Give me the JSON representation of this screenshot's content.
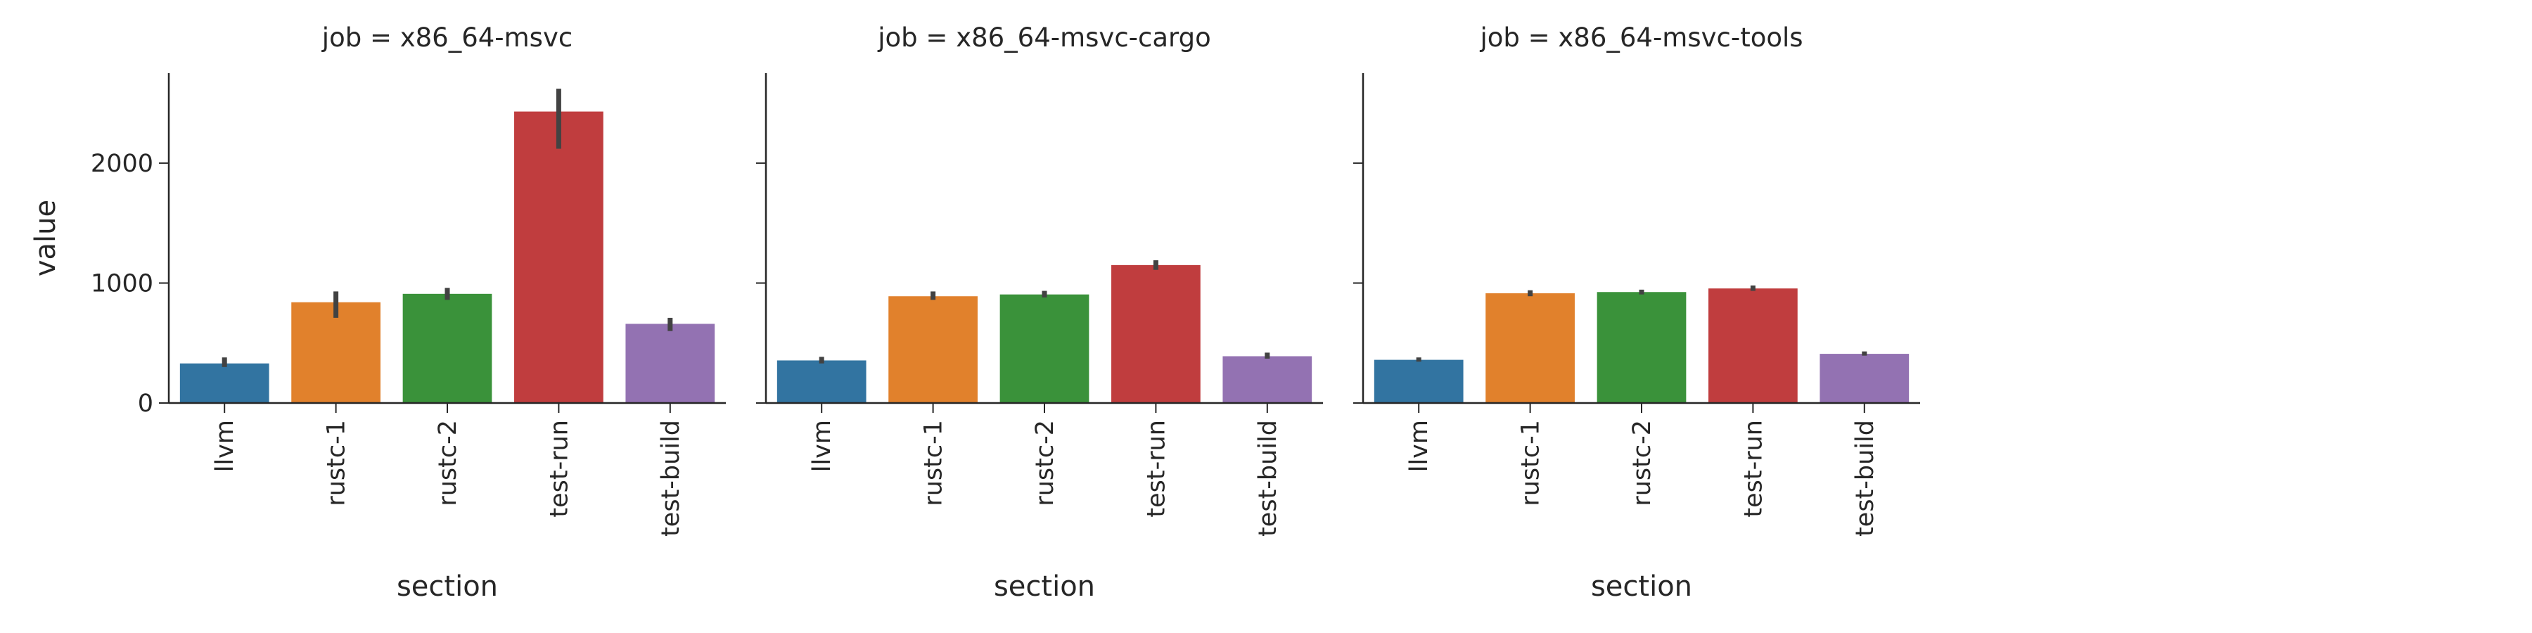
{
  "colors": {
    "llvm": "#3274a1",
    "rustc-1": "#e1812c",
    "rustc-2": "#3a923a",
    "test-run": "#c03d3e",
    "test-build": "#9372b2",
    "errorbar": "#424242",
    "axis": "#262626"
  },
  "chart_data": [
    {
      "type": "bar",
      "title": "job = x86_64-msvc",
      "xlabel": "section",
      "ylabel": "value",
      "categories": [
        "llvm",
        "rustc-1",
        "rustc-2",
        "test-run",
        "test-build"
      ],
      "values": [
        330,
        840,
        910,
        2430,
        660
      ],
      "error_low": [
        300,
        710,
        860,
        2120,
        600
      ],
      "error_high": [
        380,
        930,
        960,
        2620,
        710
      ],
      "ylim": [
        0,
        2750
      ],
      "yticks": [
        0,
        1000,
        2000
      ],
      "ytick_labels": [
        "0",
        "1000",
        "2000"
      ],
      "grid": false
    },
    {
      "type": "bar",
      "title": "job = x86_64-msvc-cargo",
      "xlabel": "section",
      "ylabel": "",
      "categories": [
        "llvm",
        "rustc-1",
        "rustc-2",
        "test-run",
        "test-build"
      ],
      "values": [
        355,
        890,
        905,
        1150,
        390
      ],
      "error_low": [
        330,
        860,
        880,
        1110,
        370
      ],
      "error_high": [
        385,
        930,
        935,
        1190,
        420
      ],
      "ylim": [
        0,
        2750
      ],
      "yticks": [
        0,
        1000,
        2000
      ],
      "ytick_labels": [
        "",
        "",
        ""
      ],
      "grid": false
    },
    {
      "type": "bar",
      "title": "job = x86_64-msvc-tools",
      "xlabel": "section",
      "ylabel": "",
      "categories": [
        "llvm",
        "rustc-1",
        "rustc-2",
        "test-run",
        "test-build"
      ],
      "values": [
        360,
        915,
        925,
        955,
        410
      ],
      "error_low": [
        345,
        890,
        905,
        935,
        395
      ],
      "error_high": [
        380,
        940,
        945,
        980,
        430
      ],
      "ylim": [
        0,
        2750
      ],
      "yticks": [
        0,
        1000,
        2000
      ],
      "ytick_labels": [
        "",
        "",
        ""
      ],
      "grid": false
    }
  ]
}
